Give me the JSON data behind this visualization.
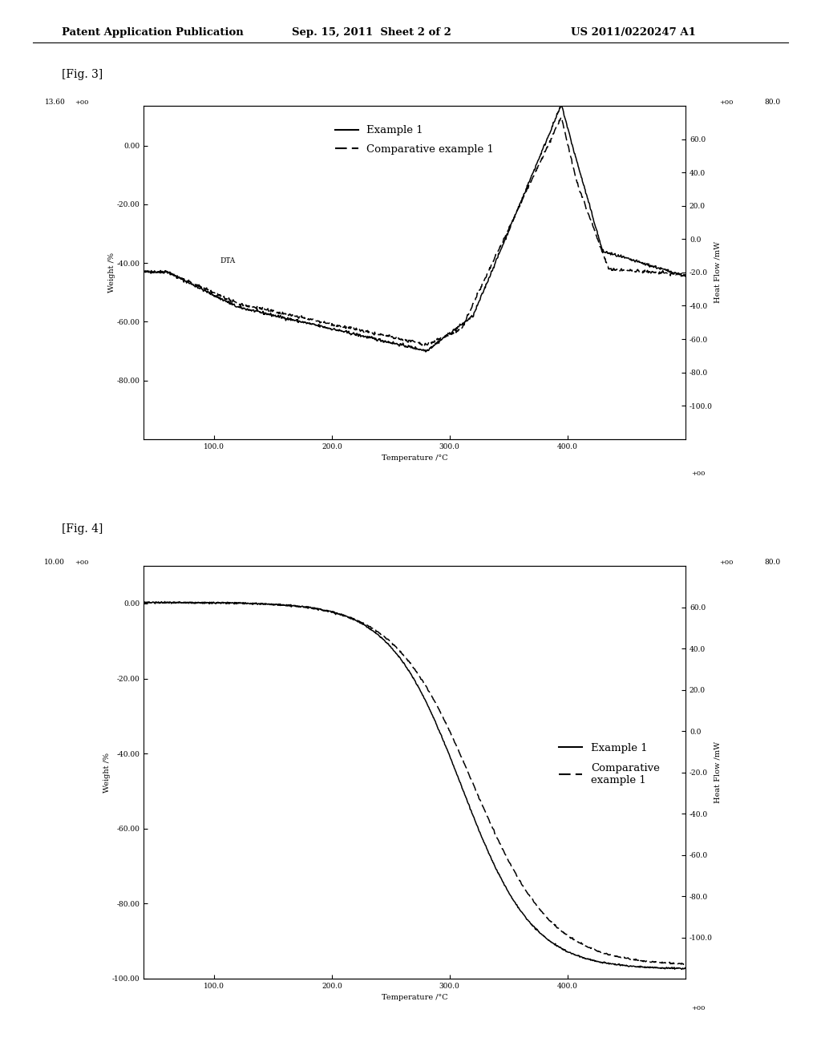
{
  "header_left": "Patent Application Publication",
  "header_mid": "Sep. 15, 2011  Sheet 2 of 2",
  "header_right": "US 2011/0220247 A1",
  "fig3_label": "[Fig. 3]",
  "fig4_label": "[Fig. 4]",
  "fig3": {
    "xlabel": "Temperature /°C",
    "ylabel_left": "Weight /%",
    "ylabel_right": "Heat Flow /mW",
    "xlim": [
      40.2,
      500.4
    ],
    "ylim_left": [
      -100.0,
      13.6
    ],
    "ylim_right": [
      -120.0,
      80.0
    ],
    "xtick_vals": [
      100.0,
      200.0,
      300.0,
      400.0
    ],
    "xtick_labels": [
      "100.0",
      "200.0",
      "300.0",
      "400.0"
    ],
    "ytick_left_vals": [
      -80.0,
      -60.0,
      -40.0,
      -20.0,
      0.0
    ],
    "ytick_left_labels": [
      "-80.00",
      "-60.00",
      "-40.00",
      "-20.00",
      "0.00"
    ],
    "ytick_right_vals": [
      -100.0,
      -80.0,
      -60.0,
      -40.0,
      -20.0,
      0.0,
      20.0,
      40.0,
      60.0
    ],
    "ytick_right_labels": [
      "-100.0",
      "-80.0",
      "-60.0",
      "-40.0",
      "-20.0",
      "0.0",
      "20.0",
      "40.0",
      "60.0"
    ],
    "top_left_label": "13.60",
    "top_right_label": "80.0",
    "dta_label": "DTA",
    "legend_example1": "Example 1",
    "legend_comp1": "Comparative example 1"
  },
  "fig4": {
    "xlabel": "Temperature /°C",
    "ylabel_left": "Weight /%",
    "ylabel_right": "Heat Flow /mW",
    "xlim": [
      40.2,
      500.4
    ],
    "ylim_left": [
      -100.0,
      10.0
    ],
    "ylim_right": [
      -120.0,
      80.0
    ],
    "xtick_vals": [
      100.0,
      200.0,
      300.0,
      400.0
    ],
    "xtick_labels": [
      "100.0",
      "200.0",
      "300.0",
      "400.0"
    ],
    "ytick_left_vals": [
      -100.0,
      -80.0,
      -60.0,
      -40.0,
      -20.0,
      0.0
    ],
    "ytick_left_labels": [
      "-100.00",
      "-80.00",
      "-60.00",
      "-40.00",
      "-20.00",
      "0.00"
    ],
    "ytick_right_vals": [
      -100.0,
      -80.0,
      -60.0,
      -40.0,
      -20.0,
      0.0,
      20.0,
      40.0,
      60.0
    ],
    "ytick_right_labels": [
      "-100.0",
      "-80.0",
      "-60.0",
      "-40.0",
      "-20.0",
      "0.0",
      "20.0",
      "40.0",
      "60.0"
    ],
    "top_left_label": "10.00",
    "top_right_label": "80.0",
    "legend_example1": "Example 1",
    "legend_comp1": "Comparative\nexample 1"
  },
  "bg_color": "#ffffff"
}
